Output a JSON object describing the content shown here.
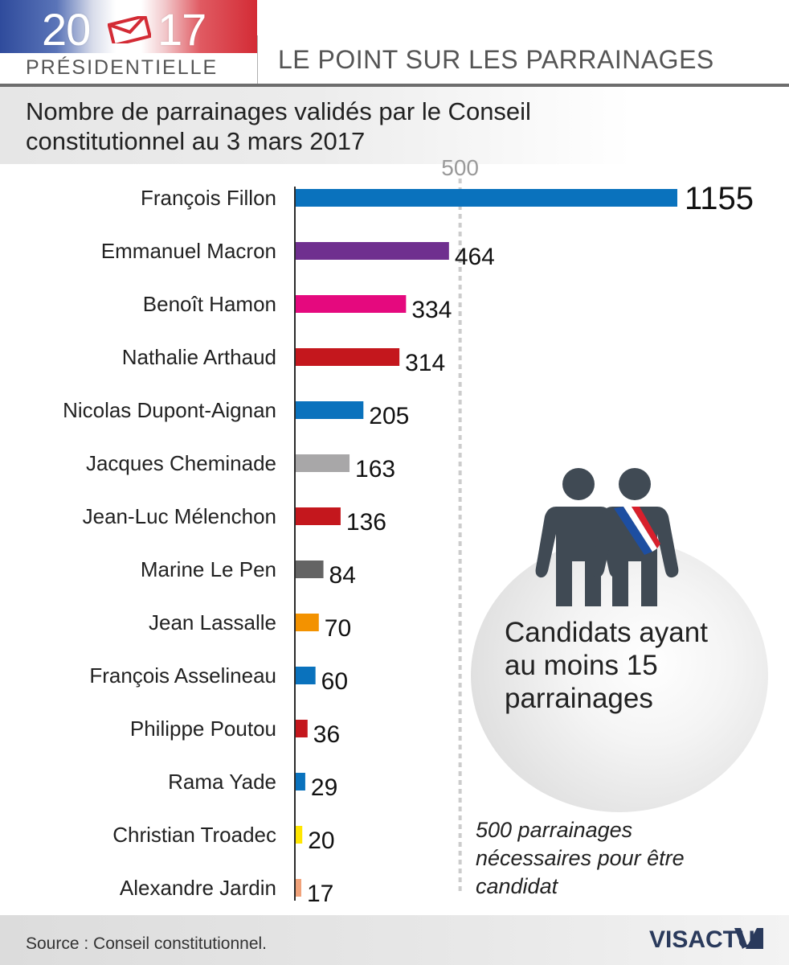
{
  "header": {
    "year_left": "20",
    "year_right": "17",
    "badge": "PRÉSIDENTIELLE",
    "title": "LE POINT SUR LES PARRAINAGES"
  },
  "subtitle": "Nombre de parrainages validés par le Conseil constitutionnel au 3 mars 2017",
  "chart_data": {
    "type": "bar",
    "orientation": "horizontal",
    "title": "Nombre de parrainages validés par le Conseil constitutionnel au 3 mars 2017",
    "categories": [
      "François Fillon",
      "Emmanuel Macron",
      "Benoît Hamon",
      "Nathalie Arthaud",
      "Nicolas Dupont-Aignan",
      "Jacques Cheminade",
      "Jean-Luc Mélenchon",
      "Marine Le Pen",
      "Jean Lassalle",
      "François Asselineau",
      "Philippe Poutou",
      "Rama Yade",
      "Christian Troadec",
      "Alexandre Jardin"
    ],
    "values": [
      1155,
      464,
      334,
      314,
      205,
      163,
      136,
      84,
      70,
      60,
      36,
      29,
      20,
      17
    ],
    "colors": [
      "#0a72bd",
      "#6f2f8f",
      "#e5097e",
      "#c4171d",
      "#0a72bd",
      "#a8a7a8",
      "#c4171d",
      "#646464",
      "#f39200",
      "#0a72bd",
      "#c4171d",
      "#0a72bd",
      "#ffe600",
      "#f0a27a"
    ],
    "reference_line": {
      "value": 500,
      "label": "500"
    },
    "xlim": [
      0,
      1155
    ],
    "xlabel": "",
    "ylabel": ""
  },
  "side_panel": {
    "text": "Candidats ayant au moins 15 parrainages",
    "sash_colors": [
      "#1d4ea1",
      "#ffffff",
      "#d8202c"
    ]
  },
  "note": "500 parrainages nécessaires pour être candidat",
  "footer": {
    "source": "Source : Conseil constitutionnel.",
    "logo": "VISACTU"
  },
  "colors": {
    "axis": "#2a2a2a",
    "reference": "#cccccc",
    "people": "#404a54"
  }
}
